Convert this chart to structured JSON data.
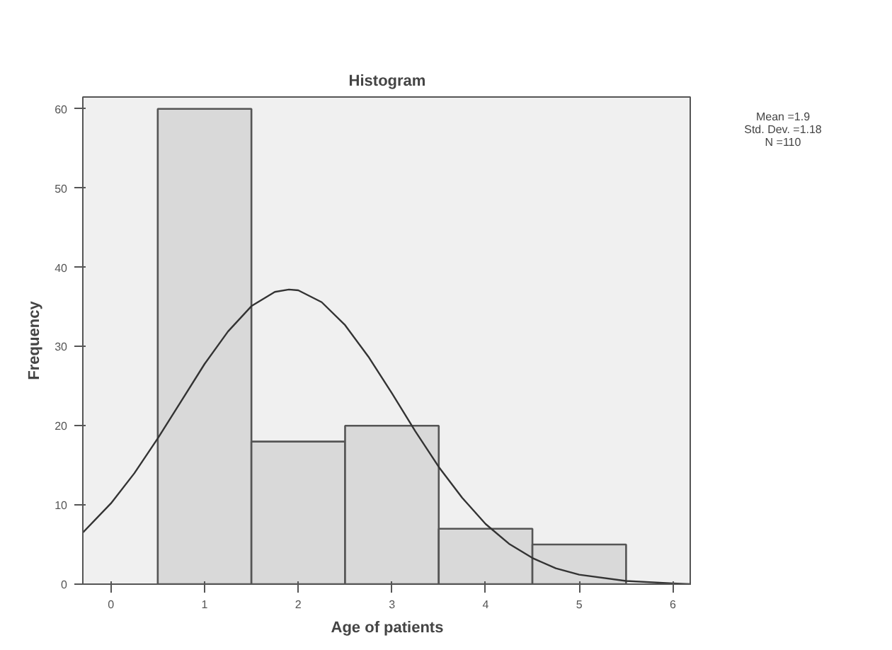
{
  "chart_data": {
    "type": "histogram",
    "title": "Histogram",
    "xlabel": "Age of patients",
    "ylabel": "Frequency",
    "bins": [
      0.5,
      1.5,
      2.5,
      3.5,
      4.5,
      5.5
    ],
    "series": [
      {
        "color": "#d9d9d9",
        "values": [
          60,
          18,
          20,
          7,
          5
        ]
      },
      {
        "type": "line",
        "color": "#333333",
        "x": [
          -0.3,
          0,
          0.25,
          0.5,
          0.75,
          1,
          1.25,
          1.5,
          1.75,
          1.9,
          2,
          2.25,
          2.5,
          2.75,
          3,
          3.25,
          3.5,
          3.75,
          4,
          4.25,
          4.5,
          4.75,
          5,
          5.5,
          6,
          6.2
        ],
        "values": [
          6.5,
          10.2,
          14,
          18.4,
          23.1,
          27.8,
          31.9,
          35.1,
          36.9,
          37.2,
          37.1,
          35.6,
          32.7,
          28.7,
          24.1,
          19.3,
          14.8,
          10.9,
          7.6,
          5.1,
          3.3,
          2,
          1.2,
          0.4,
          0.1,
          0
        ]
      }
    ],
    "xlim": [
      -0.3,
      6.2
    ],
    "ylim": [
      0,
      61.5
    ],
    "xticks": [
      0,
      1,
      2,
      3,
      4,
      5,
      6
    ],
    "yticks": [
      0,
      10,
      20,
      30,
      40,
      50,
      60
    ],
    "grid": false,
    "annotations": [
      "Mean =1.9",
      "Std. Dev. =1.18",
      "N =110"
    ]
  }
}
